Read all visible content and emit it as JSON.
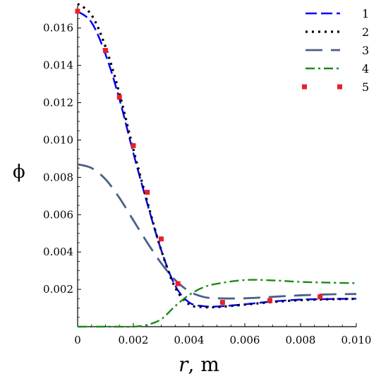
{
  "chart_data": {
    "type": "line",
    "xlabel_var": "r",
    "xlabel_unit": ", m",
    "ylabel": "ϕ",
    "xlim": [
      0,
      0.01
    ],
    "ylim": [
      0,
      0.0172
    ],
    "x_ticks": [
      0,
      0.002,
      0.004,
      0.006,
      0.008,
      0.01
    ],
    "x_tick_labels": [
      "0",
      "0.002",
      "0.004",
      "0.006",
      "0.008",
      "0.010"
    ],
    "y_ticks": [
      0.002,
      0.004,
      0.006,
      0.008,
      0.01,
      0.012,
      0.014,
      0.016
    ],
    "y_tick_labels": [
      "0.002",
      "0.004",
      "0.006",
      "0.008",
      "0.010",
      "0.012",
      "0.014",
      "0.016"
    ],
    "grid": false,
    "legend_position": "top-right",
    "series": [
      {
        "name": "1",
        "color": "#0000ff",
        "style": "dash",
        "x": [
          0,
          0.0005,
          0.001,
          0.0015,
          0.002,
          0.0025,
          0.003,
          0.0035,
          0.004,
          0.0045,
          0.005,
          0.006,
          0.007,
          0.008,
          0.009,
          0.01
        ],
        "y": [
          0.0169,
          0.0163,
          0.0146,
          0.0122,
          0.0093,
          0.0066,
          0.0041,
          0.0022,
          0.0013,
          0.0011,
          0.00108,
          0.0012,
          0.00135,
          0.00145,
          0.00148,
          0.0015
        ]
      },
      {
        "name": "2",
        "color": "#000000",
        "style": "dot",
        "x": [
          0,
          0.0005,
          0.001,
          0.0015,
          0.002,
          0.0025,
          0.003,
          0.0035,
          0.004,
          0.0045,
          0.005,
          0.006,
          0.007,
          0.008,
          0.009,
          0.01
        ],
        "y": [
          0.0173,
          0.0167,
          0.015,
          0.0125,
          0.0095,
          0.0067,
          0.0041,
          0.0021,
          0.0012,
          0.00105,
          0.00105,
          0.00118,
          0.00132,
          0.00142,
          0.00147,
          0.00149
        ]
      },
      {
        "name": "3",
        "color": "#4a5f8a",
        "style": "longdash",
        "x": [
          0,
          0.0005,
          0.001,
          0.0015,
          0.002,
          0.0025,
          0.003,
          0.0035,
          0.004,
          0.0045,
          0.005,
          0.006,
          0.007,
          0.008,
          0.009,
          0.01
        ],
        "y": [
          0.0087,
          0.0085,
          0.0079,
          0.0069,
          0.0057,
          0.0045,
          0.0034,
          0.0025,
          0.0019,
          0.0016,
          0.00152,
          0.00152,
          0.0016,
          0.00168,
          0.00173,
          0.00175
        ]
      },
      {
        "name": "4",
        "color": "#1a8a1a",
        "style": "dashdot",
        "x": [
          0,
          0.0005,
          0.001,
          0.0015,
          0.002,
          0.0025,
          0.003,
          0.0035,
          0.004,
          0.0045,
          0.005,
          0.006,
          0.007,
          0.008,
          0.009,
          0.01
        ],
        "y": [
          0.0,
          0.0,
          0.0,
          0.0,
          0.0,
          0.0001,
          0.0004,
          0.0011,
          0.0017,
          0.0021,
          0.0023,
          0.0025,
          0.00248,
          0.0024,
          0.00236,
          0.00233
        ]
      },
      {
        "name": "5",
        "color": "#e8202a",
        "style": "markers",
        "x": [
          0,
          0.001,
          0.0015,
          0.002,
          0.0025,
          0.003,
          0.0036,
          0.0052,
          0.0069,
          0.0087
        ],
        "y": [
          0.0169,
          0.0148,
          0.0123,
          0.0097,
          0.0072,
          0.0047,
          0.0023,
          0.0013,
          0.0014,
          0.0016
        ]
      }
    ]
  }
}
